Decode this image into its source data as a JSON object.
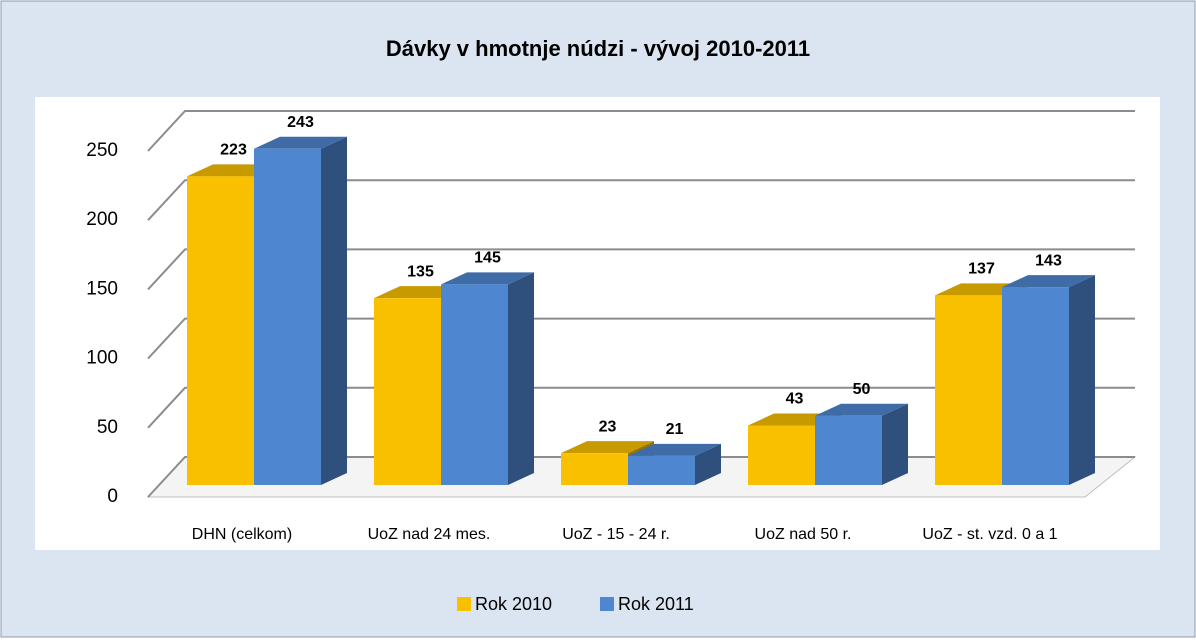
{
  "chart_data": {
    "type": "bar3d",
    "title": "Dávky v hmotnje núdzi - vývoj 2010-2011",
    "categories": [
      "DHN (celkom)",
      "UoZ nad 24 mes.",
      "UoZ - 15 - 24 r.",
      "UoZ nad 50 r.",
      "UoZ - st. vzd. 0 a 1"
    ],
    "series": [
      {
        "name": "Rok 2010",
        "color": "#f9c000",
        "values": [
          223,
          135,
          23,
          43,
          137
        ]
      },
      {
        "name": "Rok 2011",
        "color": "#4f86d0",
        "values": [
          243,
          145,
          21,
          50,
          143
        ]
      }
    ],
    "ylim": [
      0,
      250
    ],
    "yticks": [
      0,
      50,
      100,
      150,
      200,
      250
    ],
    "grid": true,
    "legend": "bottom"
  }
}
